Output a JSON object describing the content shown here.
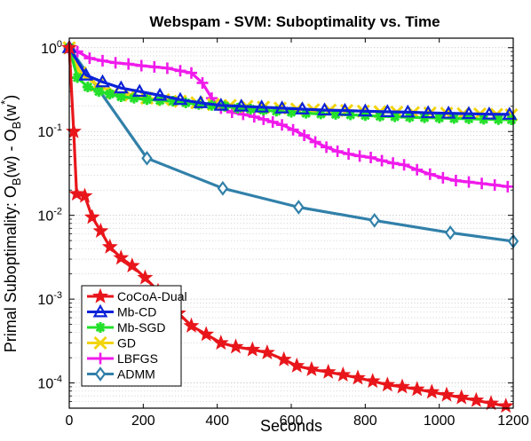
{
  "chart_data": {
    "type": "line",
    "title": "Webspam - SVM: Suboptimality vs. Time",
    "xlabel": "Seconds",
    "ylabel_parts": [
      "Primal Suboptimality: O",
      "B",
      "(w) - O",
      "B",
      "(w",
      "*",
      ")"
    ],
    "xlim": [
      0,
      1200
    ],
    "ylim": [
      5e-05,
      1.3
    ],
    "yscale": "log",
    "grid": "minor-dotted",
    "legend_position": "bottom-left",
    "x_ticks": [
      0,
      200,
      400,
      600,
      800,
      1000,
      1200
    ],
    "x_tick_labels": [
      "0",
      "200",
      "400",
      "600",
      "800",
      "1000",
      "1200"
    ],
    "y_ticks": [
      0.0001,
      0.001,
      0.01,
      0.1,
      1
    ],
    "y_tick_labels": [
      {
        "base": "10",
        "exp": "-4"
      },
      {
        "base": "10",
        "exp": "-3"
      },
      {
        "base": "10",
        "exp": "-2"
      },
      {
        "base": "10",
        "exp": "-1"
      },
      {
        "base": "10",
        "exp": "0"
      }
    ],
    "series": [
      {
        "name": "CoCoA-Dual",
        "color": "#e8161b",
        "marker": "star",
        "marker_every": 1,
        "x": [
          0,
          12,
          20,
          42,
          62,
          85,
          110,
          140,
          170,
          205,
          240,
          275,
          295,
          330,
          370,
          410,
          450,
          495,
          535,
          580,
          615,
          655,
          700,
          740,
          780,
          820,
          860,
          900,
          940,
          980,
          1020,
          1060,
          1100,
          1140,
          1180
        ],
        "y": [
          1.0,
          0.1,
          0.018,
          0.017,
          0.0095,
          0.0065,
          0.0042,
          0.0031,
          0.0025,
          0.0018,
          0.00125,
          0.00115,
          0.00068,
          0.00048,
          0.00038,
          0.0003,
          0.00027,
          0.00025,
          0.00023,
          0.00019,
          0.00016,
          0.000145,
          0.000135,
          0.000125,
          0.000115,
          0.000105,
          9.5e-05,
          9e-05,
          8.4e-05,
          7.8e-05,
          7.2e-05,
          6.7e-05,
          6.2e-05,
          5.7e-05,
          5.3e-05
        ]
      },
      {
        "name": "Mb-CD",
        "color": "#0b22d8",
        "marker": "triangle",
        "marker_every": 1,
        "x": [
          0,
          45,
          90,
          140,
          190,
          245,
          300,
          355,
          410,
          465,
          520,
          575,
          630,
          690,
          745,
          800,
          860,
          915,
          970,
          1025,
          1080,
          1135,
          1190
        ],
        "y": [
          1.0,
          0.47,
          0.39,
          0.33,
          0.3,
          0.27,
          0.24,
          0.22,
          0.205,
          0.2,
          0.195,
          0.19,
          0.185,
          0.18,
          0.178,
          0.175,
          0.172,
          0.17,
          0.167,
          0.165,
          0.163,
          0.161,
          0.16
        ]
      },
      {
        "name": "Mb-SGD",
        "color": "#23e02a",
        "marker": "asterisk",
        "marker_every": 1,
        "x": [
          0,
          22,
          50,
          80,
          110,
          140,
          175,
          210,
          245,
          280,
          315,
          350,
          385,
          420,
          455,
          490,
          525,
          560,
          600,
          640,
          680,
          720,
          760,
          800,
          840,
          880,
          920,
          960,
          1000,
          1040,
          1080,
          1120,
          1160,
          1195
        ],
        "y": [
          1.0,
          0.44,
          0.34,
          0.3,
          0.28,
          0.26,
          0.25,
          0.24,
          0.235,
          0.23,
          0.22,
          0.21,
          0.205,
          0.2,
          0.19,
          0.185,
          0.18,
          0.175,
          0.17,
          0.165,
          0.162,
          0.16,
          0.158,
          0.155,
          0.152,
          0.15,
          0.148,
          0.146,
          0.145,
          0.143,
          0.142,
          0.14,
          0.139,
          0.138
        ]
      },
      {
        "name": "GD",
        "color": "#f2d40c",
        "marker": "cross",
        "marker_every": 1,
        "x": [
          0,
          30,
          75,
          120,
          165,
          210,
          255,
          300,
          345,
          390,
          435,
          480,
          525,
          570,
          615,
          660,
          705,
          750,
          795,
          840,
          885,
          930,
          975,
          1020,
          1065,
          1110,
          1155,
          1195
        ],
        "y": [
          1.0,
          0.5,
          0.36,
          0.29,
          0.27,
          0.25,
          0.24,
          0.23,
          0.22,
          0.21,
          0.205,
          0.2,
          0.195,
          0.19,
          0.185,
          0.182,
          0.18,
          0.178,
          0.175,
          0.172,
          0.17,
          0.168,
          0.166,
          0.165,
          0.163,
          0.162,
          0.16,
          0.158
        ]
      },
      {
        "name": "LBFGS",
        "color": "#f01aeb",
        "marker": "plus",
        "marker_every": 1,
        "x": [
          0,
          22,
          55,
          90,
          125,
          160,
          195,
          230,
          265,
          300,
          330,
          360,
          385,
          410,
          440,
          470,
          500,
          525,
          550,
          575,
          605,
          635,
          665,
          695,
          725,
          755,
          785,
          815,
          845,
          875,
          905,
          940,
          975,
          1010,
          1045,
          1080,
          1115,
          1150,
          1185
        ],
        "y": [
          1.0,
          0.9,
          0.75,
          0.7,
          0.66,
          0.64,
          0.61,
          0.59,
          0.57,
          0.53,
          0.5,
          0.38,
          0.25,
          0.19,
          0.17,
          0.16,
          0.15,
          0.14,
          0.13,
          0.12,
          0.105,
          0.09,
          0.075,
          0.065,
          0.058,
          0.054,
          0.051,
          0.049,
          0.045,
          0.042,
          0.04,
          0.035,
          0.031,
          0.028,
          0.026,
          0.025,
          0.024,
          0.023,
          0.022
        ]
      },
      {
        "name": "ADMM",
        "color": "#3180a9",
        "marker": "diamond",
        "marker_every": 1,
        "x": [
          0,
          210,
          415,
          620,
          825,
          1030,
          1200
        ],
        "y": [
          1.0,
          0.048,
          0.021,
          0.0125,
          0.0087,
          0.0062,
          0.0049
        ]
      }
    ]
  }
}
